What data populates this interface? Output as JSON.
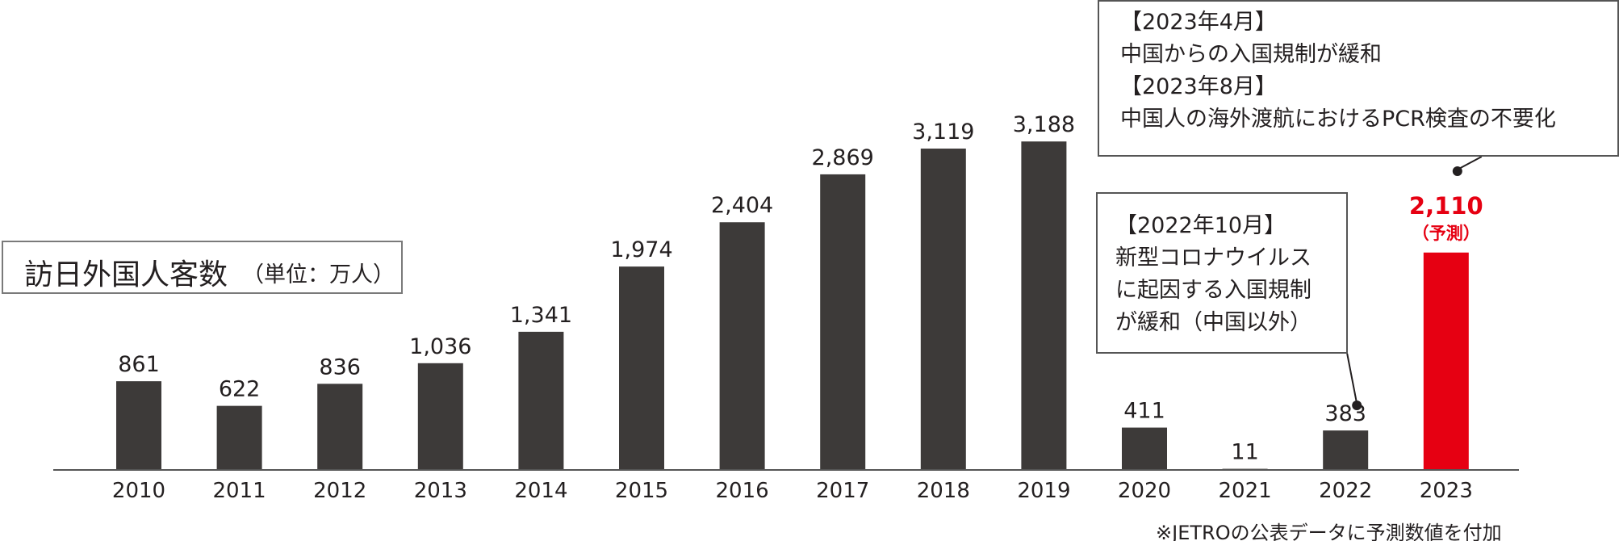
{
  "title": {
    "main": "訪日外国人客数",
    "unit": "（単位：万人）"
  },
  "annotations": [
    {
      "lines": [
        "【2023年4月】",
        "中国からの入国規制が緩和",
        "【2023年8月】",
        "中国人の海外渡航におけるPCR検査の不要化"
      ]
    },
    {
      "lines": [
        "【2022年10月】",
        "新型コロナウイルス",
        "に起因する入国規制",
        "が緩和（中国以外）"
      ]
    }
  ],
  "footnote": "※JETROの公表データに予測数値を付加",
  "chart_data": {
    "type": "bar",
    "title": "訪日外国人客数",
    "unit": "万人",
    "categories": [
      "2010",
      "2011",
      "2012",
      "2013",
      "2014",
      "2015",
      "2016",
      "2017",
      "2018",
      "2019",
      "2020",
      "2021",
      "2022",
      "2023"
    ],
    "values": [
      861,
      622,
      836,
      1036,
      1341,
      1974,
      2404,
      2869,
      3119,
      3188,
      411,
      11,
      383,
      2110
    ],
    "value_labels": [
      "861",
      "622",
      "836",
      "1,036",
      "1,341",
      "1,974",
      "2,404",
      "2,869",
      "3,119",
      "3,188",
      "411",
      "11",
      "383",
      "2,110"
    ],
    "highlight": {
      "index": 13,
      "label_suffix": "（予測）",
      "color": "#e60012"
    },
    "bar_color": "#3d3a39",
    "ylim": [
      0,
      3400
    ],
    "grid": false
  }
}
